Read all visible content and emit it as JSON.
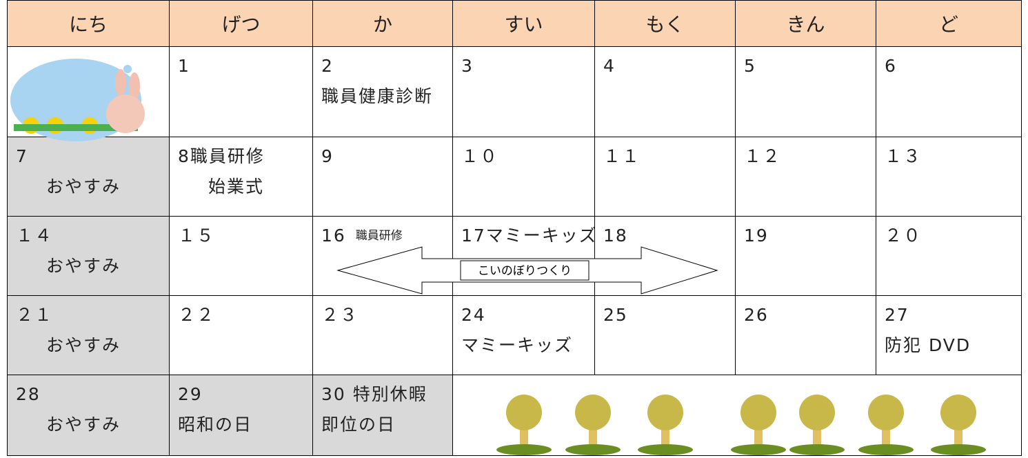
{
  "header": {
    "days": [
      "にち",
      "げつ",
      "か",
      "すい",
      "もく",
      "きん",
      "ど"
    ]
  },
  "weeks": [
    {
      "cells": [
        {
          "lines": [
            "1"
          ]
        },
        {
          "lines": [
            "2",
            "職員健康診断"
          ]
        },
        {
          "lines": [
            "3"
          ]
        },
        {
          "lines": [
            "4"
          ]
        },
        {
          "lines": [
            "5"
          ]
        },
        {
          "lines": [
            "6"
          ]
        }
      ]
    },
    {
      "cells": [
        {
          "lines": [
            "7",
            "おやすみ"
          ]
        },
        {
          "lines": [
            "8職員研修",
            "始業式"
          ]
        },
        {
          "lines": [
            "9"
          ]
        },
        {
          "lines": [
            "１０"
          ]
        },
        {
          "lines": [
            "１１"
          ]
        },
        {
          "lines": [
            "１２"
          ]
        },
        {
          "lines": [
            "１３"
          ]
        }
      ]
    },
    {
      "cells": [
        {
          "lines": [
            "１４",
            "おやすみ"
          ]
        },
        {
          "lines": [
            "１５"
          ]
        },
        {
          "lines": [
            "16",
            "職員研修"
          ]
        },
        {
          "lines": [
            "17マミーキッズ"
          ]
        },
        {
          "lines": [
            "18"
          ]
        },
        {
          "lines": [
            "19"
          ]
        },
        {
          "lines": [
            "２０"
          ]
        }
      ]
    },
    {
      "cells": [
        {
          "lines": [
            "２１",
            "おやすみ"
          ]
        },
        {
          "lines": [
            "２２"
          ]
        },
        {
          "lines": [
            "２３"
          ]
        },
        {
          "lines": [
            "24",
            "マミーキッズ"
          ]
        },
        {
          "lines": [
            "25"
          ]
        },
        {
          "lines": [
            "26"
          ]
        },
        {
          "lines": [
            "27",
            "防犯 DVD"
          ]
        }
      ]
    },
    {
      "cells": [
        {
          "lines": [
            "28",
            "おやすみ"
          ]
        },
        {
          "lines": [
            "29",
            "昭和の日"
          ]
        },
        {
          "lines": [
            "30 特別休暇",
            "即位の日"
          ]
        }
      ]
    }
  ],
  "event": {
    "label": "こいのぼりつくり"
  }
}
